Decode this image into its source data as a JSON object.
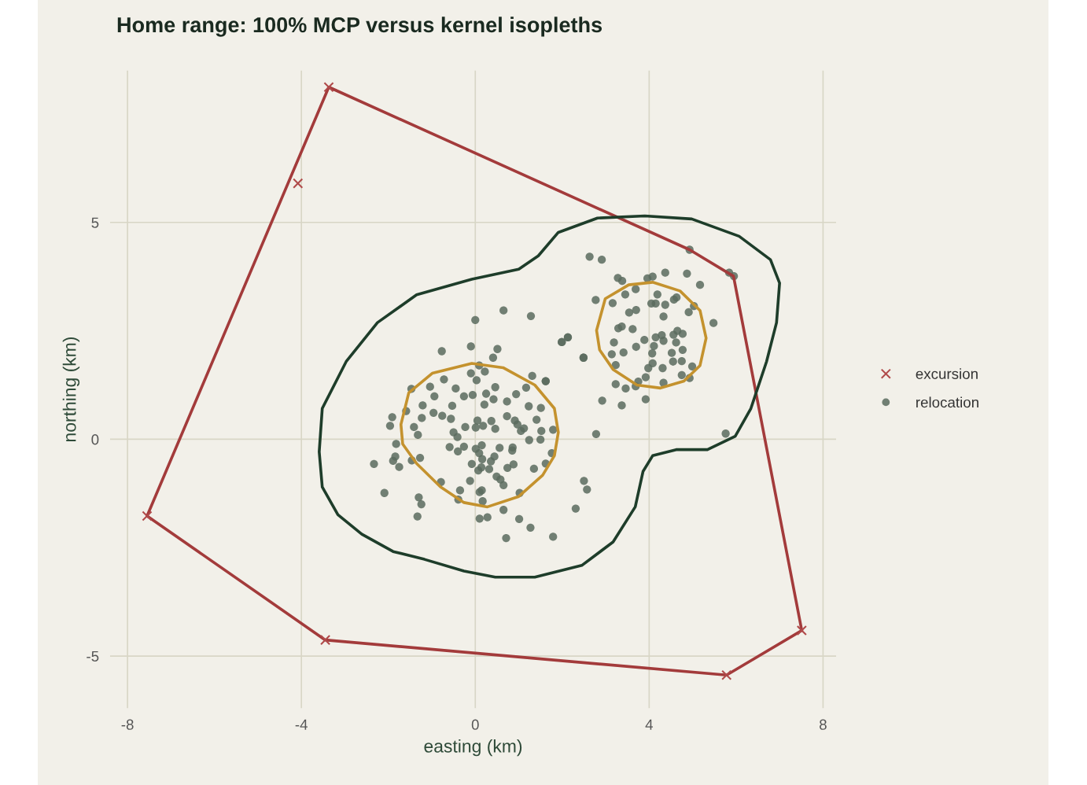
{
  "chart_data": {
    "type": "scatter",
    "title": "Home range: 100% MCP versus kernel isopleths",
    "xlabel": "easting (km)",
    "ylabel": "northing (km)",
    "xlim": [
      -8.4,
      8.3
    ],
    "ylim": [
      -6.2,
      8.5
    ],
    "xticks": [
      -8,
      -4,
      0,
      4,
      8
    ],
    "yticks": [
      -5,
      0,
      5
    ],
    "grid": true,
    "legend": "right",
    "series": [
      {
        "type": "line",
        "color": "#a33b3b",
        "marker": "none",
        "line_style": "solid",
        "x": [
          -7.55,
          -3.37,
          4.93,
          5.94,
          7.51
        ],
        "values": [
          -1.77,
          8.12,
          4.37,
          3.76,
          -4.41
        ]
      },
      {
        "type": "line",
        "color": "#a33b3b",
        "marker": "none",
        "line_style": "solid",
        "x": [
          -7.55,
          -3.45,
          5.78,
          7.51
        ],
        "values": [
          -1.77,
          -4.63,
          -5.44,
          -4.41
        ]
      },
      {
        "name": "excursion",
        "color": "#b04a4a",
        "marker": "cross",
        "x": [
          -3.37,
          -4.08,
          -7.55,
          -3.45,
          5.78,
          7.51
        ],
        "values": [
          8.12,
          5.9,
          -1.77,
          -4.63,
          -5.44,
          -4.41
        ]
      },
      {
        "name": "relocation",
        "color": "#5b6b5e",
        "marker": "circle",
        "x": [
          0.65,
          1.28,
          0.0,
          1.99,
          2.13,
          2.49,
          -0.77,
          -0.1,
          0.51,
          0.41,
          0.09,
          0.22,
          -0.1,
          0.03,
          -0.72,
          -1.47,
          -1.04,
          -0.94,
          -0.45,
          -0.26,
          -0.06,
          0.25,
          0.46,
          0.42,
          0.73,
          0.21,
          0.94,
          1.17,
          1.31,
          1.62,
          1.23,
          1.51,
          -1.21,
          -0.53,
          -1.59,
          -0.96,
          -0.76,
          -0.56,
          -1.23,
          -1.91,
          -1.96,
          -1.41,
          -1.32,
          -0.23,
          0.05,
          0.01,
          0.18,
          0.37,
          0.46,
          0.73,
          0.91,
          0.97,
          1.12,
          1.05,
          1.41,
          1.52,
          1.79,
          1.24,
          1.5,
          -0.5,
          -0.41,
          -1.82,
          -0.59,
          -0.26,
          -0.4,
          0.01,
          0.15,
          0.09,
          0.56,
          0.86,
          0.85,
          0.16,
          0.44,
          0.36,
          -0.08,
          0.14,
          0.07,
          0.32,
          0.74,
          0.88,
          1.35,
          1.62,
          1.76,
          -2.33,
          -1.89,
          -1.75,
          -1.84,
          -1.46,
          -1.27,
          -0.79,
          -0.12,
          0.49,
          0.58,
          0.65,
          -0.35,
          -0.39,
          0.15,
          0.1,
          0.17,
          1.02,
          0.65,
          0.1,
          0.28,
          1.01,
          1.27,
          0.71,
          1.79,
          2.31,
          2.5,
          2.57,
          -2.09,
          -1.3,
          -1.24,
          -1.33,
          2.63,
          2.91,
          4.93,
          5.84,
          5.95,
          3.28,
          3.38,
          3.96,
          4.08,
          4.37,
          4.87,
          5.17,
          3.69,
          3.45,
          4.19,
          2.77,
          3.16,
          4.05,
          4.15,
          4.37,
          4.57,
          4.63,
          5.03,
          4.91,
          3.54,
          3.7,
          4.33,
          5.48,
          3.29,
          3.37,
          3.62,
          2.13,
          1.99,
          3.19,
          3.89,
          4.15,
          4.29,
          4.33,
          4.11,
          4.56,
          4.65,
          4.77,
          4.62,
          4.77,
          3.7,
          3.41,
          3.14,
          2.49,
          4.07,
          4.52,
          3.23,
          4.08,
          4.55,
          4.75,
          3.98,
          4.31,
          4.99,
          3.92,
          4.75,
          4.93,
          3.75,
          3.23,
          3.46,
          3.69,
          4.33,
          2.92,
          3.37,
          3.92,
          1.62,
          2.78,
          5.76
        ],
        "values": [
          2.97,
          2.84,
          2.75,
          2.24,
          2.35,
          1.88,
          2.03,
          2.14,
          2.08,
          1.88,
          1.7,
          1.56,
          1.52,
          1.36,
          1.38,
          1.16,
          1.21,
          0.99,
          1.17,
          0.99,
          1.02,
          1.05,
          1.2,
          0.92,
          0.87,
          0.8,
          1.04,
          1.19,
          1.46,
          1.34,
          0.76,
          0.72,
          0.78,
          0.77,
          0.65,
          0.61,
          0.54,
          0.47,
          0.49,
          0.51,
          0.31,
          0.28,
          0.1,
          0.28,
          0.43,
          0.27,
          0.31,
          0.42,
          0.24,
          0.53,
          0.43,
          0.34,
          0.25,
          0.19,
          0.45,
          0.19,
          0.22,
          -0.02,
          -0.01,
          0.16,
          0.05,
          -0.11,
          -0.18,
          -0.17,
          -0.28,
          -0.22,
          -0.14,
          -0.32,
          -0.2,
          -0.19,
          -0.26,
          -0.46,
          -0.4,
          -0.51,
          -0.57,
          -0.65,
          -0.72,
          -0.69,
          -0.66,
          -0.58,
          -0.68,
          -0.56,
          -0.32,
          -0.57,
          -0.5,
          -0.64,
          -0.4,
          -0.49,
          -0.43,
          -0.99,
          -0.96,
          -0.86,
          -0.93,
          -1.06,
          -1.18,
          -1.39,
          -1.18,
          -1.22,
          -1.43,
          -1.24,
          -1.63,
          -1.83,
          -1.8,
          -1.84,
          -2.04,
          -2.28,
          -2.25,
          -1.6,
          -0.96,
          -1.16,
          -1.24,
          -1.34,
          -1.5,
          -1.78,
          4.21,
          4.14,
          4.37,
          3.84,
          3.76,
          3.72,
          3.65,
          3.71,
          3.75,
          3.84,
          3.82,
          3.56,
          3.46,
          3.34,
          3.34,
          3.21,
          3.14,
          3.13,
          3.13,
          3.1,
          3.22,
          3.27,
          3.07,
          2.93,
          2.92,
          2.98,
          2.83,
          2.68,
          2.56,
          2.6,
          2.54,
          2.35,
          2.24,
          2.23,
          2.29,
          2.35,
          2.4,
          2.27,
          2.15,
          2.41,
          2.5,
          2.43,
          2.23,
          2.06,
          2.13,
          2.0,
          1.96,
          1.88,
          1.98,
          1.99,
          1.71,
          1.75,
          1.79,
          1.8,
          1.64,
          1.64,
          1.68,
          1.43,
          1.48,
          1.41,
          1.33,
          1.27,
          1.17,
          1.22,
          1.3,
          0.89,
          0.78,
          0.92,
          1.34,
          0.12,
          0.13
        ]
      }
    ]
  }
}
